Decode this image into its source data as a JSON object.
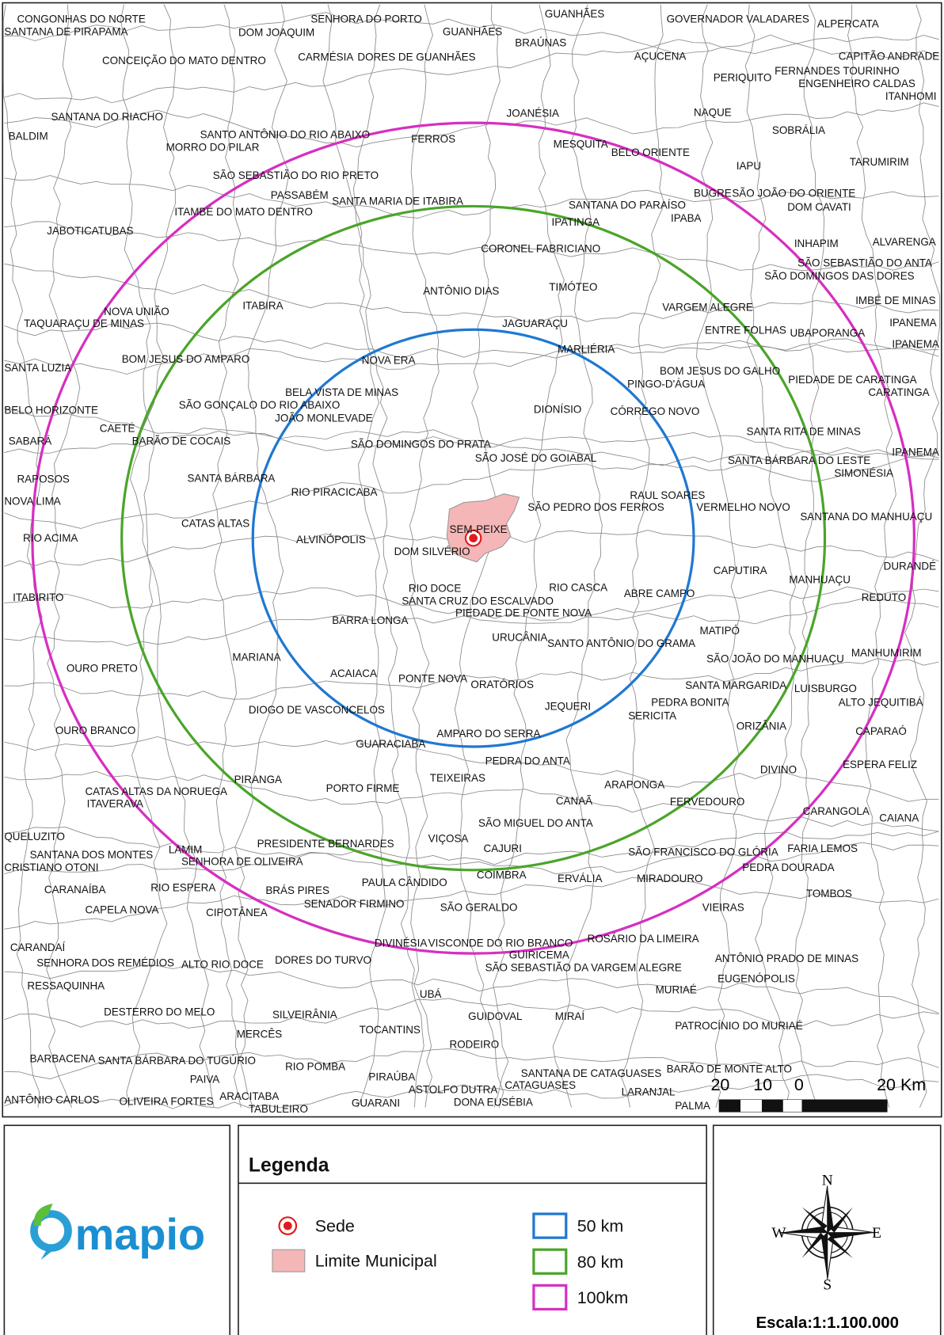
{
  "map": {
    "labels": [
      "CONGONHAS DO NORTE",
      "SANTANA DE PIRAPAMA",
      "SENHORA DO PORTO",
      "DOM JOAQUIM",
      "GUANHÃES",
      "GUANHÃES",
      "BRAÚNAS",
      "GOVERNADOR VALADARES",
      "ALPERCATA",
      "CONCEIÇÃO DO MATO DENTRO",
      "CARMÉSIA",
      "DORES DE GUANHÃES",
      "AÇUCENA",
      "CAPITÃO ANDRADE",
      "FERNANDES TOURINHO",
      "PERIQUITO",
      "ENGENHEIRO CALDAS",
      "ITANHOMI",
      "JOANÉSIA",
      "NAQUE",
      "SANTANA DO RIACHO",
      "BALDIM",
      "SANTO ANTÔNIO DO RIO ABAIXO",
      "FERROS",
      "SOBRÁLIA",
      "MORRO DO PILAR",
      "MESQUITA",
      "BELO ORIENTE",
      "TARUMIRIM",
      "IAPU",
      "SÃO SEBASTIÃO DO RIO PRETO",
      "PASSABÉM",
      "SANTA MARIA DE ITABIRA",
      "BUGRE",
      "SÃO JOÃO DO ORIENTE",
      "SANTANA DO PARAÍSO",
      "DOM CAVATI",
      "ITAMBÉ DO MATO DENTRO",
      "IPABA",
      "IPATINGA",
      "JABOTICATUBAS",
      "INHAPIM",
      "ALVARENGA",
      "CORONEL FABRICIANO",
      "SÃO SEBASTIÃO DO ANTA",
      "SÃO DOMINGOS DAS DORES",
      "TIMÓTEO",
      "ANTÔNIO DIAS",
      "IMBÉ DE MINAS",
      "ITABIRA",
      "VARGEM ALEGRE",
      "NOVA UNIÃO",
      "TAQUARAÇU DE MINAS",
      "JAGUARAÇU",
      "IPANEMA",
      "ENTRE FOLHAS",
      "UBAPORANGA",
      "IPANEMA",
      "MARLIÉRIA",
      "SANTA LUZIA",
      "BOM JESUS DO AMPARO",
      "NOVA ERA",
      "BOM JESUS DO GALHO",
      "PIEDADE DE CARATINGA",
      "PINGO-D'ÁGUA",
      "CARATINGA",
      "BELA VISTA DE MINAS",
      "SÃO GONÇALO DO RIO ABAIXO",
      "DIONÍSIO",
      "CÓRREGO NOVO",
      "BELO HORIZONTE",
      "JOÃO MONLEVADE",
      "CAETÉ",
      "SANTA RITA DE MINAS",
      "SABARÁ",
      "BARÃO DE COCAIS",
      "SÃO DOMINGOS DO PRATA",
      "IPANEMA",
      "SÃO JOSÉ DO GOIABAL",
      "SANTA BÁRBARA DO LESTE",
      "SIMONÉSIA",
      "SANTA BÁRBARA",
      "RAPOSOS",
      "RIO PIRACICABA",
      "RAUL SOARES",
      "NOVA LIMA",
      "SÃO PEDRO DOS FERROS",
      "VERMELHO NOVO",
      "SANTANA DO MANHUAÇU",
      "CATAS ALTAS",
      "SEM-PEIXE",
      "RIO ACIMA",
      "ALVINÓPOLIS",
      "DOM SILVÉRIO",
      "DURANDÉ",
      "CAPUTIRA",
      "MANHUAÇU",
      "RIO CASCA",
      "RIO DOCE",
      "ABRE CAMPO",
      "ITABIRITO",
      "REDUTO",
      "SANTA CRUZ DO ESCALVADO",
      "PIEDADE DE PONTE NOVA",
      "BARRA LONGA",
      "MATIPÓ",
      "URUCÂNIA",
      "SANTO ANTÔNIO DO GRAMA",
      "MANHUMIRIM",
      "MARIANA",
      "SÃO JOÃO DO MANHUAÇU",
      "OURO PRETO",
      "ACAIACA",
      "PONTE NOVA",
      "ORATÓRIOS",
      "SANTA MARGARIDA",
      "LUISBURGO",
      "PEDRA BONITA",
      "ALTO JEQUITIBÁ",
      "JEQUERI",
      "DIOGO DE VASCONCELOS",
      "SERICITA",
      "ORIZÂNIA",
      "OURO BRANCO",
      "CAPARAÓ",
      "AMPARO DO SERRA",
      "GUARACIABA",
      "PEDRA DO ANTA",
      "ESPERA FELIZ",
      "DIVINO",
      "TEIXEIRAS",
      "PIRANGA",
      "ARAPONGA",
      "PORTO FIRME",
      "CATAS ALTAS DA NORUEGA",
      "ITAVERAVA",
      "CANAÃ",
      "FERVEDOURO",
      "CARANGOLA",
      "CAIANA",
      "SÃO MIGUEL DO ANTA",
      "QUELUZITO",
      "VIÇOSA",
      "PRESIDENTE BERNARDES",
      "LAMIM",
      "CAJURI",
      "FARIA LEMOS",
      "SÃO FRANCISCO DO GLÓRIA",
      "SANTANA DOS MONTES",
      "SENHORA DE OLIVEIRA",
      "PEDRA DOURADA",
      "CRISTIANO OTONI",
      "COIMBRA",
      "ERVÁLIA",
      "MIRADOURO",
      "PAULA CÂNDIDO",
      "CARANAÍBA",
      "RIO ESPERA",
      "BRÁS PIRES",
      "TOMBOS",
      "SENADOR FIRMINO",
      "SÃO GERALDO",
      "CAPELA NOVA",
      "CIPOTÂNEA",
      "VIEIRAS",
      "DIVINÉSIA",
      "VISCONDE DO RIO BRANCO",
      "ROSÁRIO DA LIMEIRA",
      "CARANDAÍ",
      "GUIRICEMA",
      "ANTÔNIO PRADO DE MINAS",
      "SENHORA DOS REMÉDIOS",
      "ALTO RIO DOCE",
      "DORES DO TURVO",
      "SÃO SEBASTIÃO DA VARGEM ALEGRE",
      "EUGENÓPOLIS",
      "RESSAQUINHA",
      "MURIAÉ",
      "UBÁ",
      "DESTERRO DO MELO",
      "SILVEIRÂNIA",
      "GUIDOVAL",
      "MIRAÍ",
      "PATROCÍNIO DO MURIAÉ",
      "MERCÊS",
      "TOCANTINS",
      "RODEIRO",
      "BARBACENA",
      "SANTA BÁRBARA DO TUGÚRIO",
      "RIO POMBA",
      "SANTANA DE CATAGUASES",
      "BARÃO DE MONTE ALTO",
      "PIRAÚBA",
      "PAIVA",
      "ASTOLFO DUTRA",
      "CATAGUASES",
      "LARANJAL",
      "ARACITABA",
      "ANTÔNIO CARLOS",
      "OLIVEIRA FORTES",
      "GUARANI",
      "DONA EUSÉBIA",
      "PALMA",
      "TABULEIRO"
    ],
    "scale_bar": [
      "20",
      "10",
      "0",
      "20 Km"
    ]
  },
  "logo": "mapio",
  "legend": {
    "title": "Legenda",
    "sede": {
      "label": "Sede",
      "color": "#e31a1c"
    },
    "limite": {
      "label": "Limite Municipal",
      "color": "#f4b6b6"
    },
    "buffers": [
      {
        "label": "50 km",
        "color": "#1f78d1"
      },
      {
        "label": "80 km",
        "color": "#4aa52a"
      },
      {
        "label": "100km",
        "color": "#d62fc0"
      }
    ]
  },
  "compass": {
    "n": "N",
    "e": "E",
    "s": "S",
    "w": "W"
  },
  "scale": "Escala:1:1.100.000"
}
